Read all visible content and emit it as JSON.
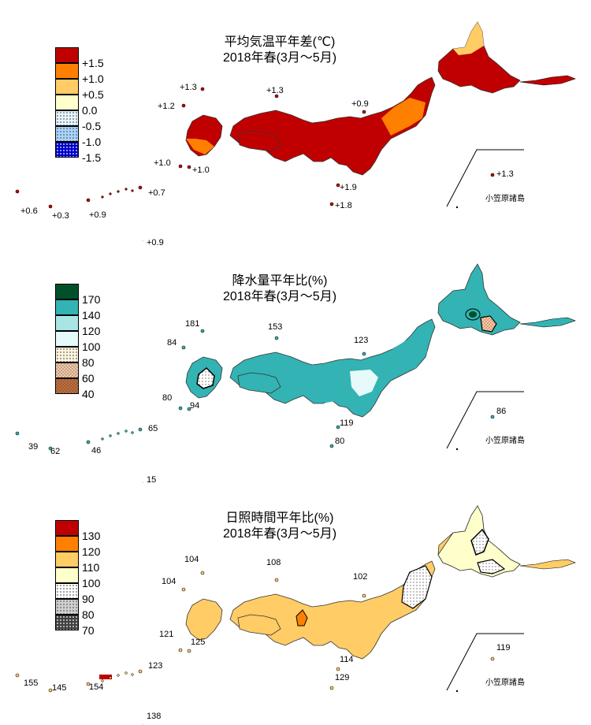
{
  "panels": [
    {
      "id": "temp",
      "title_line1": "平均気温平年差(℃)",
      "title_line2": "2018年春(3月～5月)",
      "legend": [
        {
          "label": "+1.5",
          "color": "#c00000"
        },
        {
          "label": "+1.0",
          "color": "#ff8000"
        },
        {
          "label": "+0.5",
          "color": "#ffcc66"
        },
        {
          "label": "0.0",
          "color": "#ffffcc"
        },
        {
          "label": "-0.5",
          "color": "#e6f4ff",
          "pattern": "dots-light"
        },
        {
          "label": "-1.0",
          "color": "#a8d4ff",
          "pattern": "dots"
        },
        {
          "label": "-1.5",
          "color": "#0000cc",
          "pattern": "dots-dense"
        }
      ],
      "main_color": "#c00000",
      "values": {
        "tsushima": "+1.3",
        "goto": "+1.2",
        "oki": "+1.3",
        "sado": "+0.9",
        "yakushima": "+1.0",
        "tanegashima": "+1.0",
        "amami": "+0.7",
        "yonaguni": "+0.6",
        "ishigaki": "+0.3",
        "miyako": "+0.9",
        "daito": "+0.9",
        "hachijo": "+1.9",
        "miyake": "+1.8",
        "chichijima": "+1.3"
      },
      "ogasawara_label": "小笠原諸島"
    },
    {
      "id": "precip",
      "title_line1": "降水量平年比(%)",
      "title_line2": "2018年春(3月～5月)",
      "legend": [
        {
          "label": "170",
          "color": "#00502a"
        },
        {
          "label": "140",
          "color": "#33b3b3"
        },
        {
          "label": "120",
          "color": "#a8e6e6"
        },
        {
          "label": "100",
          "color": "#e6fafa"
        },
        {
          "label": "80",
          "color": "#fff4e0",
          "pattern": "dots-light"
        },
        {
          "label": "60",
          "color": "#f0c8a8",
          "pattern": "checks"
        },
        {
          "label": "40",
          "color": "#c07040",
          "pattern": "checks-dark"
        }
      ],
      "main_color": "#33b3b3",
      "values": {
        "tsushima": "181",
        "goto": "84",
        "oki": "153",
        "sado": "123",
        "yakushima": "80",
        "tanegashima": "94",
        "amami": "65",
        "yonaguni": "39",
        "ishigaki": "62",
        "miyako": "46",
        "daito": "15",
        "hachijo": "119",
        "miyake": "80",
        "chichijima": "86"
      },
      "ogasawara_label": "小笠原諸島"
    },
    {
      "id": "sunshine",
      "title_line1": "日照時間平年比(%)",
      "title_line2": "2018年春(3月～5月)",
      "legend": [
        {
          "label": "130",
          "color": "#c00000"
        },
        {
          "label": "120",
          "color": "#ff8000"
        },
        {
          "label": "110",
          "color": "#ffcc66"
        },
        {
          "label": "100",
          "color": "#ffffcc"
        },
        {
          "label": "90",
          "color": "#ffffff",
          "pattern": "dots-light"
        },
        {
          "label": "80",
          "color": "#d0d0d0",
          "pattern": "dots"
        },
        {
          "label": "70",
          "color": "#404040",
          "pattern": "dots-dense"
        }
      ],
      "main_color": "#ffcc66",
      "values": {
        "tsushima": "104",
        "goto": "104",
        "oki": "108",
        "sado": "102",
        "yakushima": "121",
        "tanegashima": "125",
        "amami": "123",
        "yonaguni": "155",
        "ishigaki": "145",
        "miyako": "154",
        "daito": "138",
        "hachijo": "114",
        "miyake": "129",
        "chichijima": "119"
      },
      "ogasawara_label": "小笠原諸島"
    }
  ]
}
